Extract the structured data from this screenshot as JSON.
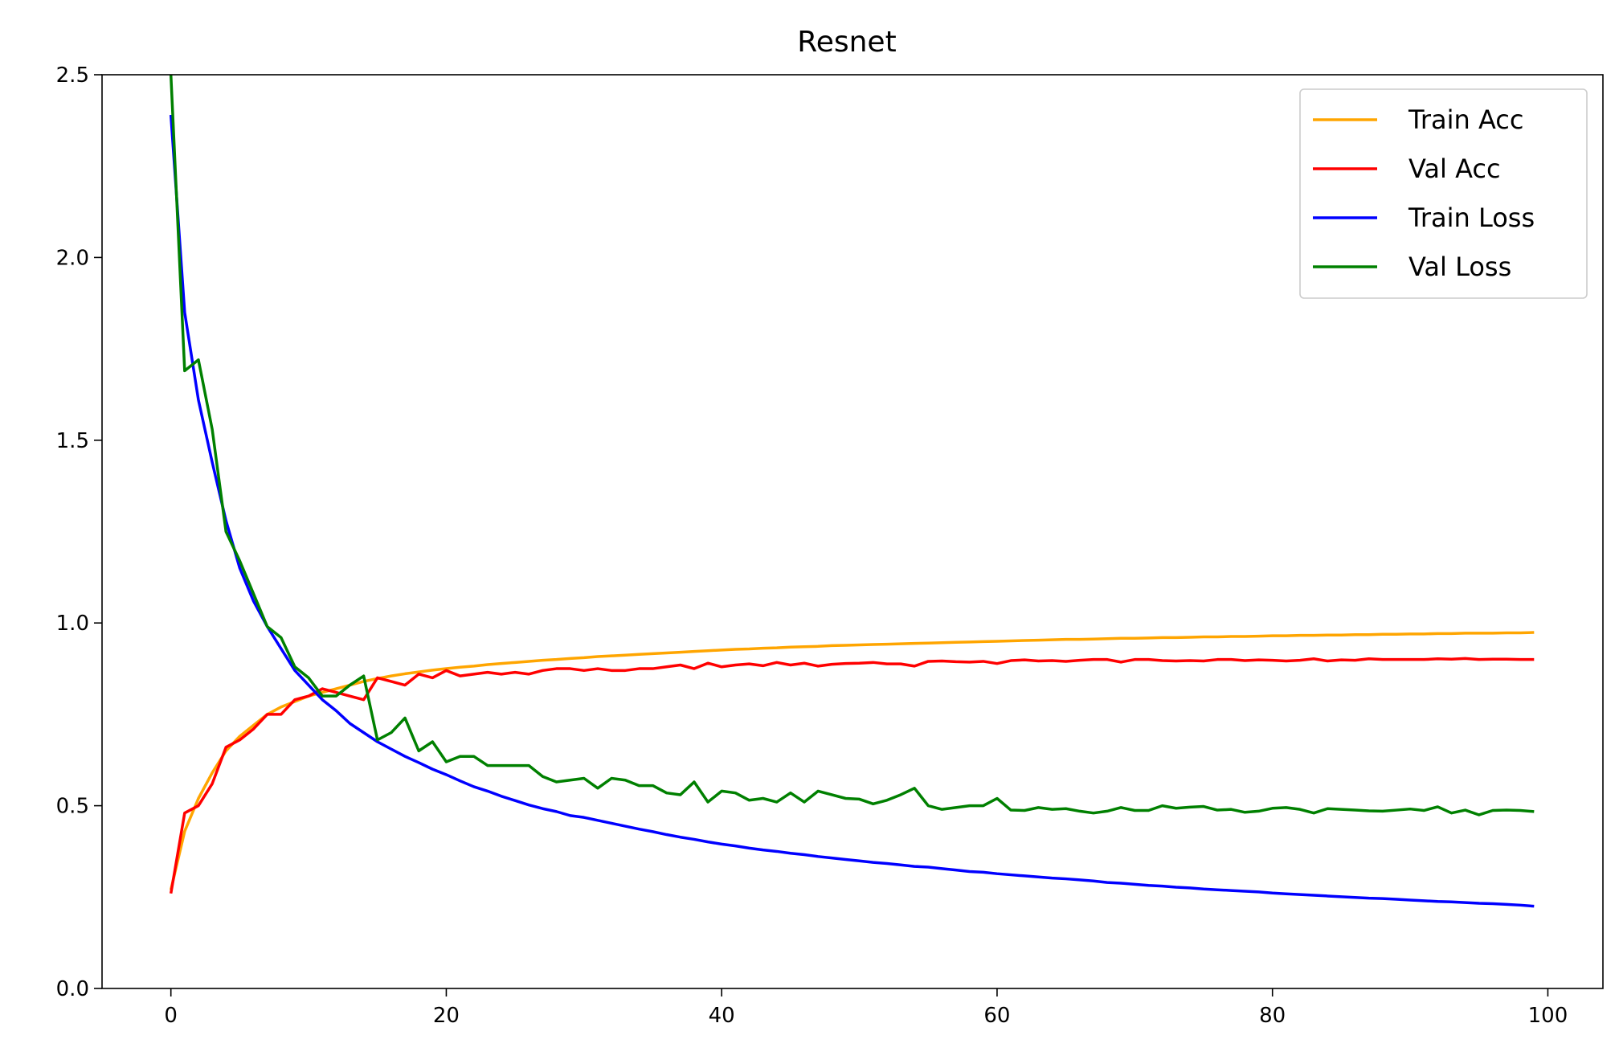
{
  "chart_data": {
    "type": "line",
    "title": "Resnet",
    "xlabel": "",
    "ylabel": "",
    "xlim": [
      -5,
      104
    ],
    "ylim": [
      0,
      2.5
    ],
    "xticks": [
      0,
      20,
      40,
      60,
      80,
      100
    ],
    "xtick_labels": [
      "0",
      "20",
      "40",
      "60",
      "80",
      "100"
    ],
    "yticks": [
      0,
      0.5,
      1.0,
      1.5,
      2.0,
      2.5
    ],
    "ytick_labels": [
      "0.0",
      "0.5",
      "1.0",
      "1.5",
      "2.0",
      "2.5"
    ],
    "grid": false,
    "legend_position": "top-right",
    "x": [
      0,
      1,
      2,
      3,
      4,
      5,
      6,
      7,
      8,
      9,
      10,
      11,
      12,
      13,
      14,
      15,
      16,
      17,
      18,
      19,
      20,
      21,
      22,
      23,
      24,
      25,
      26,
      27,
      28,
      29,
      30,
      31,
      32,
      33,
      34,
      35,
      36,
      37,
      38,
      39,
      40,
      41,
      42,
      43,
      44,
      45,
      46,
      47,
      48,
      49,
      50,
      51,
      52,
      53,
      54,
      55,
      56,
      57,
      58,
      59,
      60,
      61,
      62,
      63,
      64,
      65,
      66,
      67,
      68,
      69,
      70,
      71,
      72,
      73,
      74,
      75,
      76,
      77,
      78,
      79,
      80,
      81,
      82,
      83,
      84,
      85,
      86,
      87,
      88,
      89,
      90,
      91,
      92,
      93,
      94,
      95,
      96,
      97,
      98,
      99
    ],
    "series": [
      {
        "name": "Train Acc",
        "color": "#FFA500",
        "values": [
          0.27,
          0.43,
          0.52,
          0.59,
          0.65,
          0.69,
          0.72,
          0.75,
          0.77,
          0.785,
          0.8,
          0.81,
          0.82,
          0.83,
          0.84,
          0.848,
          0.855,
          0.861,
          0.866,
          0.871,
          0.875,
          0.879,
          0.882,
          0.886,
          0.889,
          0.892,
          0.895,
          0.898,
          0.9,
          0.903,
          0.905,
          0.908,
          0.91,
          0.912,
          0.914,
          0.916,
          0.918,
          0.92,
          0.922,
          0.924,
          0.926,
          0.928,
          0.929,
          0.931,
          0.932,
          0.934,
          0.935,
          0.936,
          0.938,
          0.939,
          0.94,
          0.941,
          0.942,
          0.943,
          0.944,
          0.945,
          0.946,
          0.947,
          0.948,
          0.949,
          0.95,
          0.951,
          0.952,
          0.953,
          0.954,
          0.955,
          0.955,
          0.956,
          0.957,
          0.958,
          0.958,
          0.959,
          0.96,
          0.96,
          0.961,
          0.962,
          0.962,
          0.963,
          0.963,
          0.964,
          0.965,
          0.965,
          0.966,
          0.966,
          0.967,
          0.967,
          0.968,
          0.968,
          0.969,
          0.969,
          0.97,
          0.97,
          0.971,
          0.971,
          0.972,
          0.972,
          0.972,
          0.973,
          0.973,
          0.974
        ]
      },
      {
        "name": "Val Acc",
        "color": "#FF0000",
        "values": [
          0.26,
          0.48,
          0.5,
          0.56,
          0.66,
          0.68,
          0.71,
          0.75,
          0.75,
          0.79,
          0.8,
          0.82,
          0.81,
          0.8,
          0.79,
          0.85,
          0.84,
          0.83,
          0.86,
          0.85,
          0.87,
          0.855,
          0.86,
          0.865,
          0.86,
          0.865,
          0.86,
          0.87,
          0.875,
          0.875,
          0.87,
          0.875,
          0.87,
          0.87,
          0.875,
          0.875,
          0.88,
          0.885,
          0.875,
          0.89,
          0.88,
          0.885,
          0.888,
          0.883,
          0.892,
          0.885,
          0.89,
          0.882,
          0.887,
          0.889,
          0.89,
          0.892,
          0.888,
          0.888,
          0.882,
          0.895,
          0.896,
          0.894,
          0.893,
          0.895,
          0.889,
          0.897,
          0.899,
          0.896,
          0.897,
          0.895,
          0.898,
          0.9,
          0.9,
          0.893,
          0.9,
          0.9,
          0.897,
          0.896,
          0.897,
          0.896,
          0.9,
          0.9,
          0.897,
          0.899,
          0.898,
          0.896,
          0.898,
          0.902,
          0.896,
          0.899,
          0.898,
          0.902,
          0.9,
          0.9,
          0.9,
          0.9,
          0.902,
          0.901,
          0.903,
          0.9,
          0.901,
          0.901,
          0.9,
          0.9
        ]
      },
      {
        "name": "Train Loss",
        "color": "#0000FF",
        "values": [
          2.39,
          1.85,
          1.61,
          1.44,
          1.28,
          1.15,
          1.06,
          0.99,
          0.93,
          0.87,
          0.83,
          0.79,
          0.76,
          0.725,
          0.7,
          0.675,
          0.655,
          0.635,
          0.618,
          0.6,
          0.585,
          0.568,
          0.552,
          0.54,
          0.526,
          0.514,
          0.502,
          0.492,
          0.484,
          0.473,
          0.468,
          0.46,
          0.452,
          0.444,
          0.436,
          0.429,
          0.421,
          0.414,
          0.408,
          0.401,
          0.395,
          0.39,
          0.384,
          0.379,
          0.375,
          0.37,
          0.366,
          0.361,
          0.357,
          0.353,
          0.349,
          0.345,
          0.342,
          0.338,
          0.334,
          0.332,
          0.328,
          0.324,
          0.32,
          0.318,
          0.314,
          0.311,
          0.308,
          0.305,
          0.302,
          0.3,
          0.297,
          0.294,
          0.29,
          0.288,
          0.285,
          0.282,
          0.28,
          0.277,
          0.275,
          0.272,
          0.27,
          0.268,
          0.266,
          0.264,
          0.261,
          0.259,
          0.257,
          0.255,
          0.253,
          0.251,
          0.249,
          0.247,
          0.246,
          0.244,
          0.242,
          0.24,
          0.238,
          0.237,
          0.235,
          0.233,
          0.232,
          0.23,
          0.228,
          0.225
        ]
      },
      {
        "name": "Val Loss",
        "color": "#008000",
        "values": [
          2.5,
          1.69,
          1.72,
          1.53,
          1.25,
          1.17,
          1.08,
          0.99,
          0.96,
          0.88,
          0.85,
          0.8,
          0.8,
          0.83,
          0.855,
          0.68,
          0.7,
          0.74,
          0.65,
          0.675,
          0.62,
          0.635,
          0.635,
          0.61,
          0.61,
          0.61,
          0.61,
          0.58,
          0.565,
          0.57,
          0.575,
          0.548,
          0.575,
          0.57,
          0.555,
          0.555,
          0.535,
          0.53,
          0.565,
          0.51,
          0.54,
          0.535,
          0.515,
          0.52,
          0.51,
          0.535,
          0.51,
          0.54,
          0.53,
          0.52,
          0.518,
          0.505,
          0.515,
          0.53,
          0.548,
          0.5,
          0.49,
          0.495,
          0.5,
          0.5,
          0.52,
          0.488,
          0.487,
          0.495,
          0.49,
          0.492,
          0.485,
          0.48,
          0.485,
          0.495,
          0.487,
          0.487,
          0.5,
          0.493,
          0.496,
          0.498,
          0.488,
          0.49,
          0.482,
          0.485,
          0.493,
          0.495,
          0.49,
          0.48,
          0.492,
          0.49,
          0.488,
          0.486,
          0.485,
          0.488,
          0.491,
          0.487,
          0.497,
          0.48,
          0.488,
          0.475,
          0.487,
          0.488,
          0.487,
          0.484
        ]
      }
    ]
  }
}
